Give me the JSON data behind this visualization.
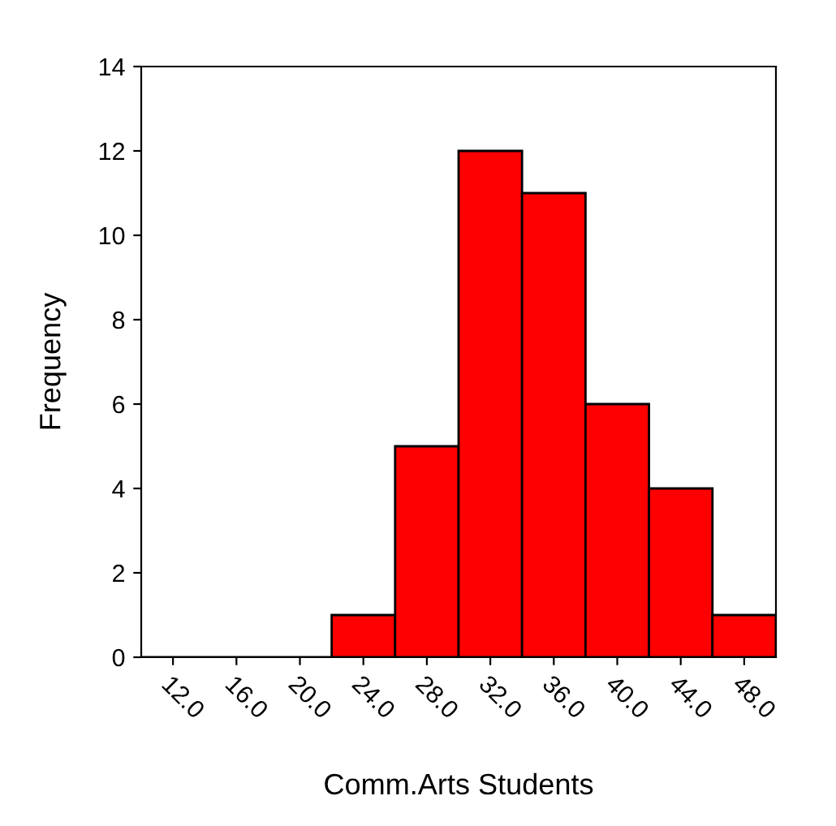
{
  "chart_data": {
    "type": "histogram",
    "xlabel": "Comm.Arts Students",
    "ylabel": "Frequency",
    "bins": [
      10,
      14,
      18,
      22,
      26,
      30,
      34,
      38,
      42,
      46,
      50
    ],
    "values": [
      0,
      0,
      0,
      1,
      5,
      12,
      11,
      6,
      4,
      1
    ],
    "color": "#ff0000",
    "xlim": [
      10,
      50
    ],
    "xticks": [
      {
        "value": 12,
        "label": "12.0"
      },
      {
        "value": 16,
        "label": "16.0"
      },
      {
        "value": 20,
        "label": "20.0"
      },
      {
        "value": 24,
        "label": "24.0"
      },
      {
        "value": 28,
        "label": "28.0"
      },
      {
        "value": 32,
        "label": "32.0"
      },
      {
        "value": 36,
        "label": "36.0"
      },
      {
        "value": 40,
        "label": "40.0"
      },
      {
        "value": 44,
        "label": "44.0"
      },
      {
        "value": 48,
        "label": "48.0"
      }
    ],
    "ylim": [
      0,
      14
    ],
    "yticks": [
      0,
      2,
      4,
      6,
      8,
      10,
      12,
      14
    ],
    "grid": false
  }
}
